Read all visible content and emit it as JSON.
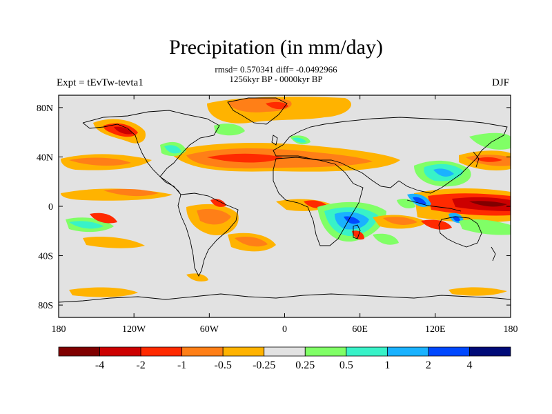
{
  "chart_data": {
    "type": "heatmap",
    "title": "Precipitation (in mm/day)",
    "stats_line": "rmsd= 0.570341 diff= -0.0492966",
    "period": "1256kyr BP - 0000kyr BP",
    "left_label": "Expt = tEvTw-tevta1",
    "right_label": "DJF",
    "x_ticks": [
      "180",
      "120W",
      "60W",
      "0",
      "60E",
      "120E",
      "180"
    ],
    "y_ticks": [
      "80N",
      "40N",
      "0",
      "40S",
      "80S"
    ],
    "colorbar": {
      "colors": [
        "#800000",
        "#cc0000",
        "#ff2a00",
        "#ff7f17",
        "#ffb300",
        "#e2e2e2",
        "#80ff66",
        "#38f2c8",
        "#1ab2ff",
        "#0048ff",
        "#000b78"
      ],
      "labels": [
        "-4",
        "-2",
        "-1",
        "-0.5",
        "-0.25",
        "0.25",
        "0.5",
        "1",
        "2",
        "4"
      ]
    },
    "background_color": "#e2e2e2"
  }
}
